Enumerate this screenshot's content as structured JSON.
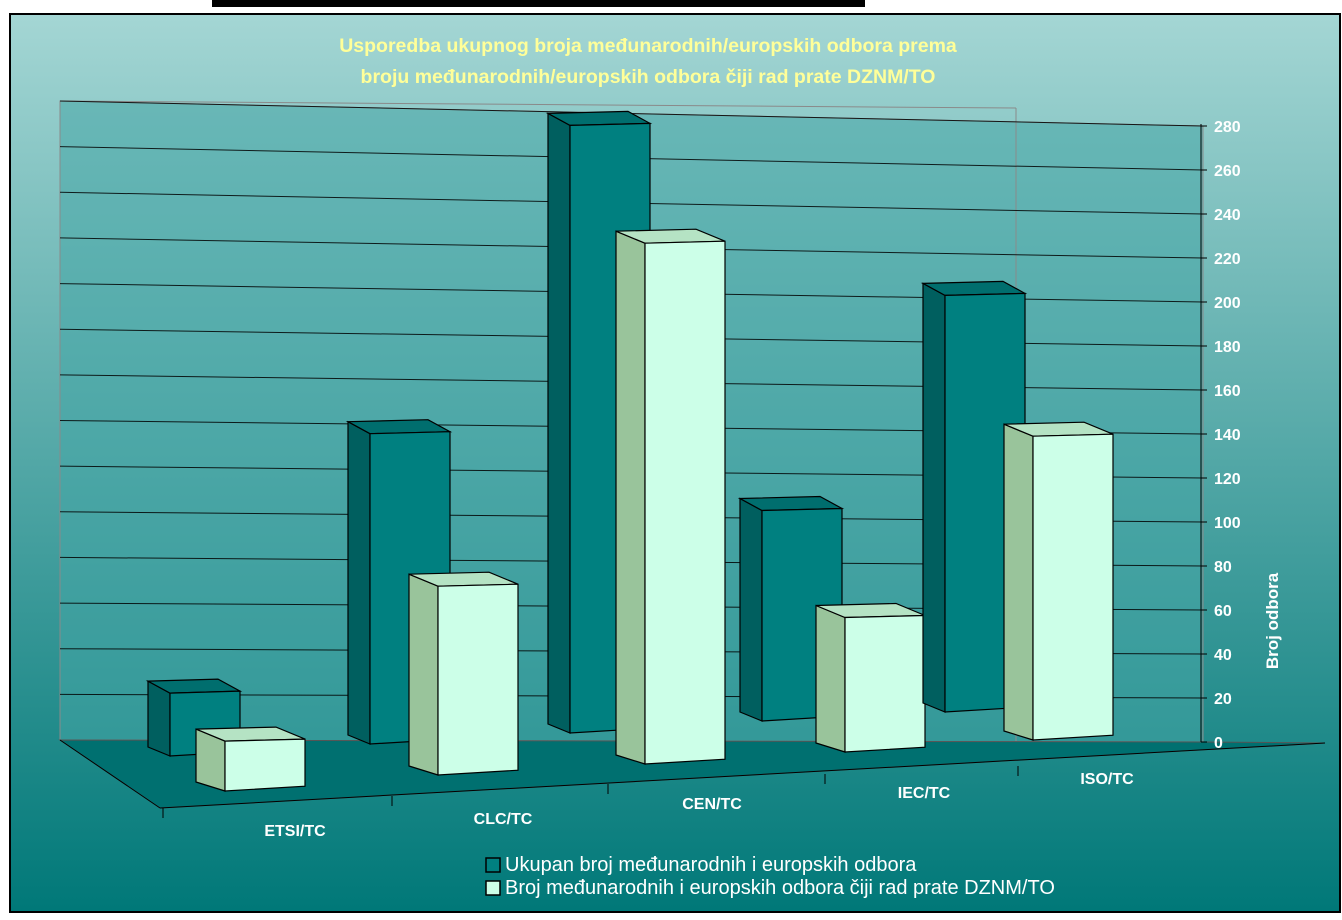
{
  "chart_data": {
    "type": "bar",
    "title": [
      "Usporedba ukupnog broja međunarodnih/europskih odbora prema",
      "broju međunarodnih/europskih odbora čiji rad prate DZNM/TO"
    ],
    "ylabel": "Broj odbora",
    "xlabel": "",
    "categories": [
      "ETSI/TC",
      "CLC/TC",
      "CEN/TC",
      "IEC/TC",
      "ISO/TC"
    ],
    "yticks": [
      0,
      20,
      40,
      60,
      80,
      100,
      120,
      140,
      160,
      180,
      200,
      220,
      240,
      260,
      280
    ],
    "ylim": [
      0,
      280
    ],
    "grid": true,
    "legend_position": "bottom",
    "series": [
      {
        "name": "Ukupan broj međunarodnih i europskih odbora",
        "values": [
          29,
          143,
          280,
          97,
          192
        ],
        "color": "#008080",
        "side_color": "#005f5f",
        "top_color": "#006e6e"
      },
      {
        "name": "Broj međunarodnih i europskih odbora čiji rad prate DZNM/TO",
        "values": [
          23,
          87,
          240,
          62,
          140
        ],
        "color": "#ccffe8",
        "side_color": "#99c49b",
        "top_color": "#b5e3c4"
      }
    ],
    "colors": {
      "background_top": "#a4d6d4",
      "background_bottom": "#007878",
      "title_text": "#ffff99",
      "axis_text": "#ffffff"
    }
  }
}
